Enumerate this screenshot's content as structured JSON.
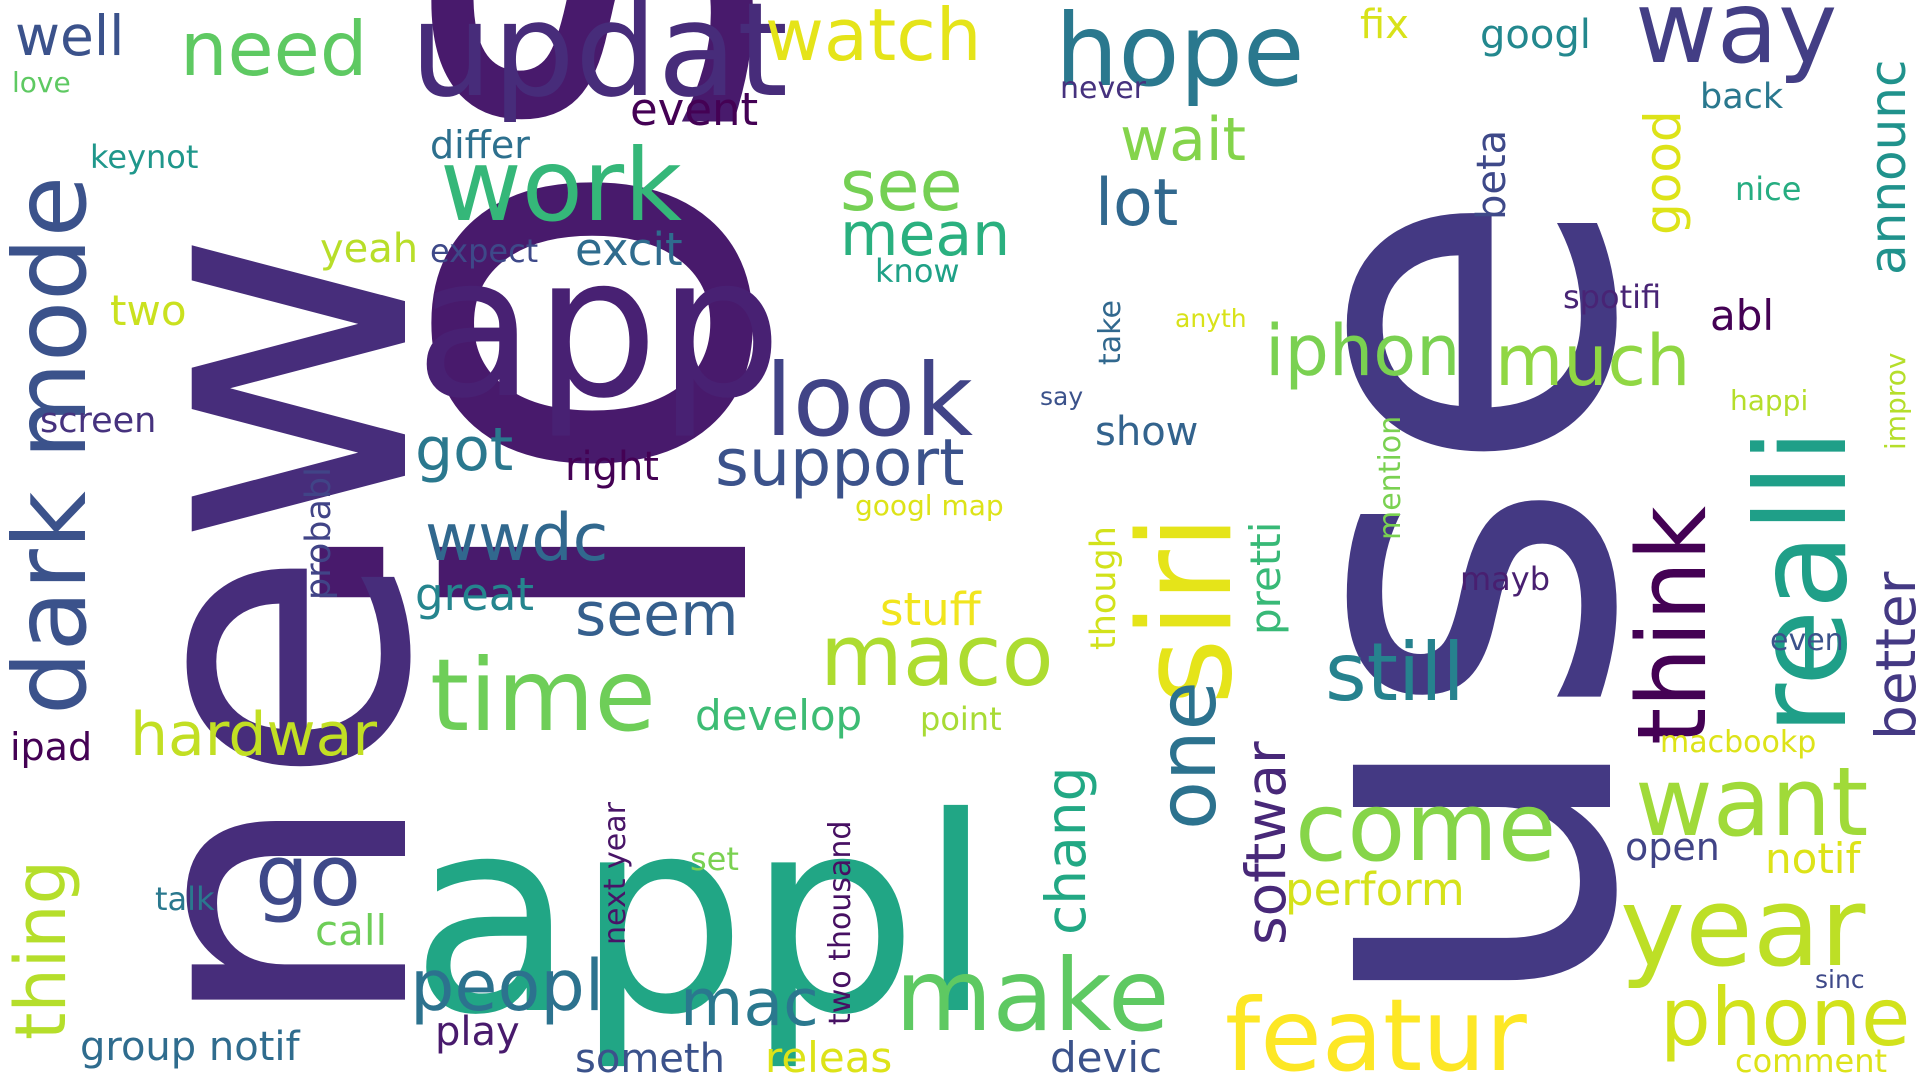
{
  "words": [
    {
      "text": "ios",
      "color": "#481a6c"
    },
    {
      "text": "new",
      "color": "#472d7b"
    },
    {
      "text": "use",
      "color": "#443983"
    },
    {
      "text": "appl",
      "color": "#21a685"
    },
    {
      "text": "app",
      "color": "#482173"
    },
    {
      "text": "updat",
      "color": "#472c7a"
    },
    {
      "text": "realli",
      "color": "#1f9f88"
    },
    {
      "text": "siri",
      "color": "#e5e419"
    },
    {
      "text": "hope",
      "color": "#2a788e"
    },
    {
      "text": "way",
      "color": "#433e85"
    },
    {
      "text": "need",
      "color": "#5ec962"
    },
    {
      "text": "well",
      "color": "#3b528b"
    },
    {
      "text": "watch",
      "color": "#e5e419"
    },
    {
      "text": "work",
      "color": "#35b779"
    },
    {
      "text": "dark mode",
      "color": "#3b528b"
    },
    {
      "text": "look",
      "color": "#414487"
    },
    {
      "text": "time",
      "color": "#6ece58"
    },
    {
      "text": "one",
      "color": "#2c728e"
    },
    {
      "text": "think",
      "color": "#440154"
    },
    {
      "text": "year",
      "color": "#bddf26"
    },
    {
      "text": "want",
      "color": "#a0da39"
    },
    {
      "text": "featur",
      "color": "#fde725"
    },
    {
      "text": "make",
      "color": "#5ec962"
    },
    {
      "text": "come",
      "color": "#86d549"
    },
    {
      "text": "phone",
      "color": "#d2e21b"
    },
    {
      "text": "still",
      "color": "#26828e"
    },
    {
      "text": "go",
      "color": "#3e4989"
    },
    {
      "text": "maco",
      "color": "#addc30"
    },
    {
      "text": "iphon",
      "color": "#7ad151"
    },
    {
      "text": "much",
      "color": "#90d743"
    },
    {
      "text": "support",
      "color": "#3b528b"
    },
    {
      "text": "thing",
      "color": "#b5de2b"
    },
    {
      "text": "peopl",
      "color": "#2c728e"
    },
    {
      "text": "wwdc",
      "color": "#31688e"
    },
    {
      "text": "seem",
      "color": "#355f8d"
    },
    {
      "text": "mac",
      "color": "#2a788e"
    },
    {
      "text": "chang",
      "color": "#22a884"
    },
    {
      "text": "softwar",
      "color": "#482878"
    },
    {
      "text": "better",
      "color": "#443983"
    },
    {
      "text": "see",
      "color": "#75d054"
    },
    {
      "text": "mean",
      "color": "#2ab07f"
    },
    {
      "text": "lot",
      "color": "#31688e"
    },
    {
      "text": "wait",
      "color": "#84d44b"
    },
    {
      "text": "hardwar",
      "color": "#c2df23"
    },
    {
      "text": "got",
      "color": "#2a788e"
    },
    {
      "text": "announc",
      "color": "#20928c"
    },
    {
      "text": "good",
      "color": "#dde318"
    },
    {
      "text": "stuff",
      "color": "#f1e51d"
    },
    {
      "text": "perform",
      "color": "#d5e21a"
    },
    {
      "text": "develop",
      "color": "#3dbc74"
    },
    {
      "text": "great",
      "color": "#25858e"
    },
    {
      "text": "pretti",
      "color": "#38b977"
    },
    {
      "text": "excit",
      "color": "#2f6c8e"
    },
    {
      "text": "fix",
      "color": "#d8e219"
    },
    {
      "text": "googl",
      "color": "#23888e"
    },
    {
      "text": "beta",
      "color": "#3e4989"
    },
    {
      "text": "two",
      "color": "#cae11f"
    },
    {
      "text": "event",
      "color": "#440154"
    },
    {
      "text": "differ",
      "color": "#2d708e"
    },
    {
      "text": "yeah",
      "color": "#b8de29"
    },
    {
      "text": "expect",
      "color": "#3e4989"
    },
    {
      "text": "know",
      "color": "#1fa187"
    },
    {
      "text": "right",
      "color": "#440154"
    },
    {
      "text": "probabl",
      "color": "#414487"
    },
    {
      "text": "screen",
      "color": "#46327e"
    },
    {
      "text": "keynot",
      "color": "#1f978b"
    },
    {
      "text": "love",
      "color": "#5ec962"
    },
    {
      "text": "never",
      "color": "#46327e"
    },
    {
      "text": "back",
      "color": "#2a788e"
    },
    {
      "text": "nice",
      "color": "#26ad81"
    },
    {
      "text": "spotifi",
      "color": "#482475"
    },
    {
      "text": "abl",
      "color": "#440154"
    },
    {
      "text": "anyth",
      "color": "#d8e219"
    },
    {
      "text": "take",
      "color": "#31688e"
    },
    {
      "text": "say",
      "color": "#3b528b"
    },
    {
      "text": "show",
      "color": "#33638d"
    },
    {
      "text": "mention",
      "color": "#7ad151"
    },
    {
      "text": "happi",
      "color": "#b5de2b"
    },
    {
      "text": "improv",
      "color": "#b5de2b"
    },
    {
      "text": "googl map",
      "color": "#dde318"
    },
    {
      "text": "though",
      "color": "#d2e21b"
    },
    {
      "text": "mayb",
      "color": "#481f70"
    },
    {
      "text": "even",
      "color": "#3b528b"
    },
    {
      "text": "point",
      "color": "#a8db34"
    },
    {
      "text": "macbookp",
      "color": "#dde318"
    },
    {
      "text": "ipad",
      "color": "#440154"
    },
    {
      "text": "next year",
      "color": "#481467"
    },
    {
      "text": "two thousand",
      "color": "#471063"
    },
    {
      "text": "set",
      "color": "#7ad151"
    },
    {
      "text": "open",
      "color": "#414487"
    },
    {
      "text": "notif",
      "color": "#dde318"
    },
    {
      "text": "talk",
      "color": "#2a788e"
    },
    {
      "text": "call",
      "color": "#6ece58"
    },
    {
      "text": "sinc",
      "color": "#3e4989"
    },
    {
      "text": "group notif",
      "color": "#2f6c8e"
    },
    {
      "text": "play",
      "color": "#481a6c"
    },
    {
      "text": "someth",
      "color": "#3b528b"
    },
    {
      "text": "releas",
      "color": "#dde318"
    },
    {
      "text": "devic",
      "color": "#3b528b"
    },
    {
      "text": "comment",
      "color": "#dde318"
    }
  ]
}
